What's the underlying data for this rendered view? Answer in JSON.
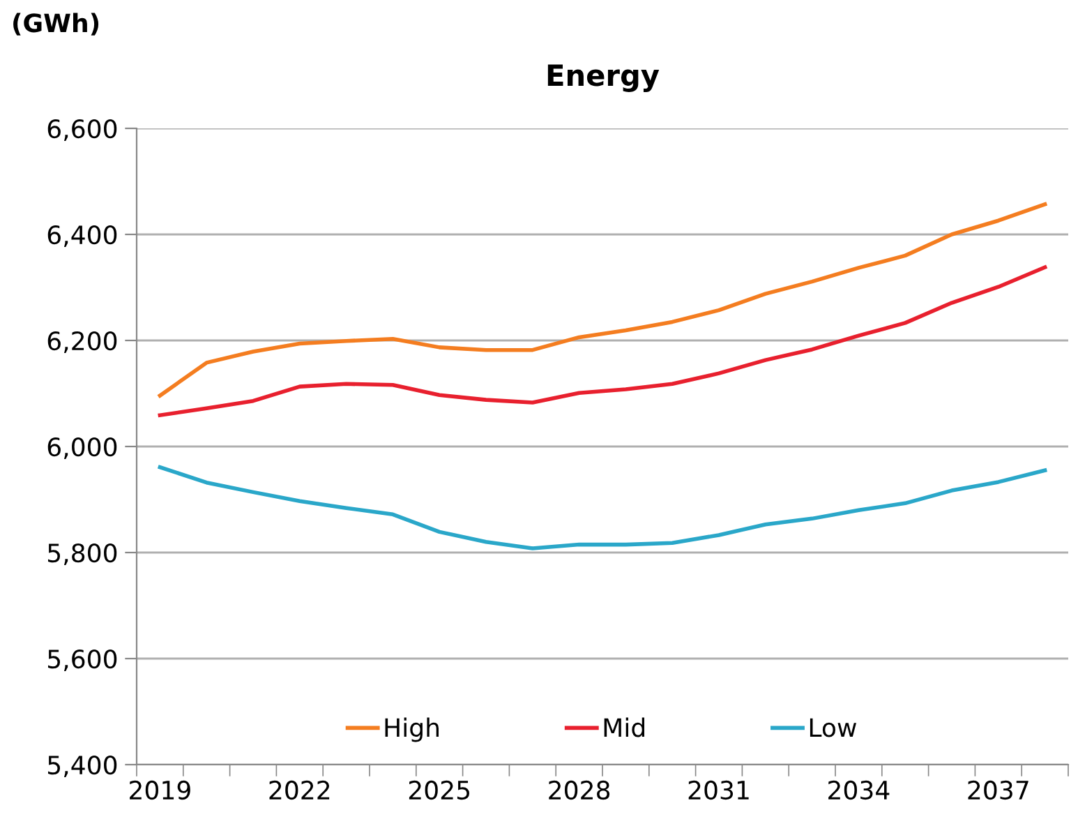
{
  "chart_data": {
    "type": "line",
    "title": "Energy",
    "ylabel": "(GWh)",
    "categories": [
      "2019",
      null,
      null,
      "2022",
      null,
      null,
      "2025",
      null,
      null,
      "2028",
      null,
      null,
      "2031",
      null,
      null,
      "2034",
      null,
      null,
      "2037",
      null
    ],
    "series": [
      {
        "name": "High",
        "color": "#f47d20",
        "values": [
          6096,
          6158,
          6179,
          6194,
          6199,
          6203,
          6187,
          6182,
          6182,
          6206,
          6219,
          6235,
          6257,
          6288,
          6311,
          6337,
          6360,
          6400,
          6426,
          6457
        ]
      },
      {
        "name": "Mid",
        "color": "#e8202e",
        "values": [
          6059,
          6072,
          6086,
          6113,
          6118,
          6116,
          6097,
          6088,
          6083,
          6101,
          6108,
          6118,
          6138,
          6163,
          6183,
          6209,
          6233,
          6271,
          6301,
          6338
        ]
      },
      {
        "name": "Low",
        "color": "#2aa7c9",
        "values": [
          5961,
          5932,
          5914,
          5897,
          5884,
          5872,
          5839,
          5820,
          5808,
          5815,
          5815,
          5818,
          5833,
          5853,
          5864,
          5880,
          5893,
          5917,
          5933,
          5955
        ]
      }
    ],
    "ylim": [
      5400,
      6600
    ],
    "yticks": [
      {
        "value": 5400,
        "label": "5,400"
      },
      {
        "value": 5600,
        "label": "5,600"
      },
      {
        "value": 5800,
        "label": "5,800"
      },
      {
        "value": 6000,
        "label": "6,000"
      },
      {
        "value": 6200,
        "label": "6,200"
      },
      {
        "value": 6400,
        "label": "6,400"
      },
      {
        "value": 6600,
        "label": "6,600"
      }
    ],
    "grid": "y",
    "legend": "bottom",
    "marker": "none",
    "line_style": "solid"
  }
}
